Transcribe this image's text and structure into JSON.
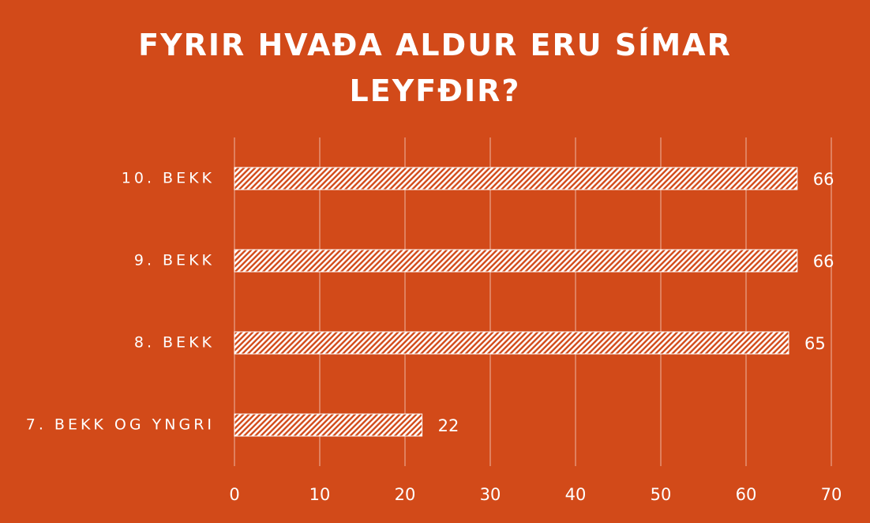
{
  "chart_data": {
    "type": "bar",
    "orientation": "horizontal",
    "title": "FYRIR HVAÐA ALDUR ERU SÍMAR LEYFÐIR?",
    "categories": [
      "10. BEKK",
      "9. BEKK",
      "8. BEKK",
      "7. BEKK OG YNGRI"
    ],
    "values": [
      66,
      66,
      65,
      22
    ],
    "color": "#ffffff",
    "xlim": [
      0,
      70
    ],
    "xticks": [
      0,
      10,
      20,
      30,
      40,
      50,
      60,
      70
    ],
    "grid": true,
    "data_labels": true
  }
}
